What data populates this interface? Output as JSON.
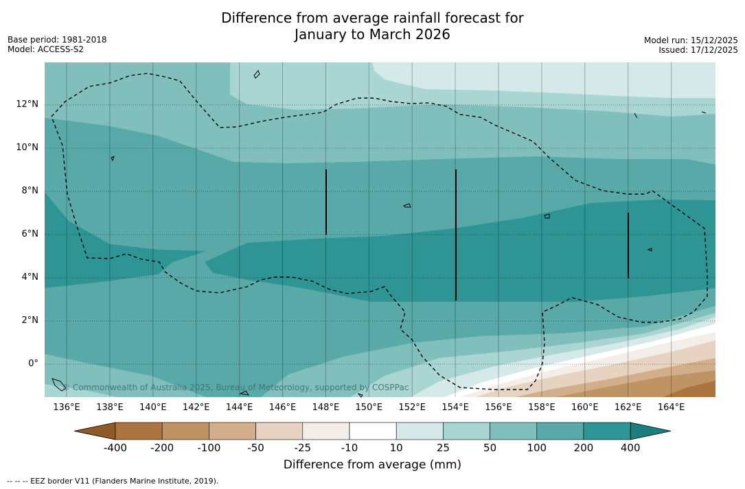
{
  "title_line1": "Difference from average rainfall forecast for",
  "title_line2": "January to March 2026",
  "base_period": "Base period: 1981-2018",
  "model": "Model: ACCESS-S2",
  "model_run": "Model run: 15/12/2025",
  "issued": "Issued: 17/12/2025",
  "copyright": "© Commonwealth of Australia 2025, Bureau of Meteorology, supported by COSPPac",
  "x_labels": [
    "136°E",
    "138°E",
    "140°E",
    "142°E",
    "144°E",
    "146°E",
    "148°E",
    "150°E",
    "152°E",
    "154°E",
    "156°E",
    "158°E",
    "160°E",
    "162°E",
    "164°E"
  ],
  "y_labels": [
    "12°N",
    "10°N",
    "8°N",
    "6°N",
    "4°N",
    "2°N",
    "0°"
  ],
  "colorbar": {
    "labels": [
      "-400",
      "-200",
      "-100",
      "-50",
      "-25",
      "-10",
      "10",
      "25",
      "50",
      "100",
      "200",
      "400"
    ],
    "colors": [
      "#8f5a23",
      "#ab7440",
      "#bf9465",
      "#d2ae8b",
      "#e6d3c1",
      "#f3eeea",
      "#ffffff",
      "#d4e9e8",
      "#a9d5d3",
      "#81bfbd",
      "#58a9a8",
      "#2f9594",
      "#1c7f7e"
    ],
    "title": "Difference from average (mm)"
  },
  "eez_note": "--  --  -- EEZ border V11 (Flanders Marine Institute, 2019)."
}
